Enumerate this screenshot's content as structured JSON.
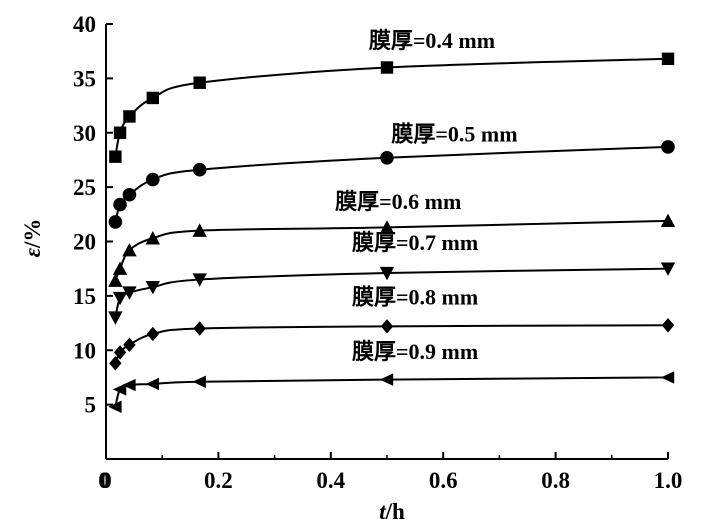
{
  "chart_data": {
    "type": "line",
    "title": "",
    "xlabel_italic": "t",
    "xlabel_rest": "/h",
    "ylabel_italic": "ε",
    "ylabel_rest": "/%",
    "xlim": [
      0,
      1.0
    ],
    "ylim": [
      0,
      40
    ],
    "xticks": [
      "0",
      "0.2",
      "0.4",
      "0.6",
      "0.8",
      "1.0"
    ],
    "yticks": [
      "5",
      "10",
      "15",
      "20",
      "25",
      "30",
      "35",
      "40"
    ],
    "xtick_values": [
      0,
      0.2,
      0.4,
      0.6,
      0.8,
      1.0
    ],
    "ytick_values": [
      5,
      10,
      15,
      20,
      25,
      30,
      35,
      40
    ],
    "grid": false,
    "series": [
      {
        "name": "膜厚=0.4 mm",
        "marker": "square",
        "x": [
          0.0167,
          0.025,
          0.0417,
          0.0833,
          0.1667,
          0.5,
          1.0
        ],
        "y": [
          27.8,
          30.0,
          31.5,
          33.2,
          34.6,
          36.0,
          36.8
        ]
      },
      {
        "name": "膜厚=0.5 mm",
        "marker": "circle",
        "x": [
          0.0167,
          0.025,
          0.0417,
          0.0833,
          0.1667,
          0.5,
          1.0
        ],
        "y": [
          21.8,
          23.4,
          24.3,
          25.7,
          26.6,
          27.7,
          28.7
        ]
      },
      {
        "name": "膜厚=0.6 mm",
        "marker": "triangle-up",
        "x": [
          0.0167,
          0.025,
          0.0417,
          0.0833,
          0.1667,
          0.5,
          1.0
        ],
        "y": [
          16.4,
          17.5,
          19.2,
          20.3,
          21.0,
          21.3,
          21.9
        ]
      },
      {
        "name": "膜厚=0.7 mm",
        "marker": "triangle-down",
        "x": [
          0.0167,
          0.025,
          0.0417,
          0.0833,
          0.1667,
          0.5,
          1.0
        ],
        "y": [
          13.0,
          14.8,
          15.3,
          15.8,
          16.5,
          17.1,
          17.5
        ]
      },
      {
        "name": "膜厚=0.8 mm",
        "marker": "diamond",
        "x": [
          0.0167,
          0.025,
          0.0417,
          0.0833,
          0.1667,
          0.5,
          1.0
        ],
        "y": [
          8.8,
          9.8,
          10.5,
          11.5,
          12.0,
          12.2,
          12.3
        ]
      },
      {
        "name": "膜厚=0.9 mm",
        "marker": "triangle-left",
        "x": [
          0.0167,
          0.025,
          0.0417,
          0.0833,
          0.1667,
          0.5,
          1.0
        ],
        "y": [
          4.8,
          6.4,
          6.8,
          6.9,
          7.1,
          7.3,
          7.5
        ]
      }
    ],
    "series_label_anchor": [
      {
        "x": 0.58,
        "y": 37.8
      },
      {
        "x": 0.62,
        "y": 29.2
      },
      {
        "x": 0.52,
        "y": 23.0
      },
      {
        "x": 0.55,
        "y": 19.2
      },
      {
        "x": 0.55,
        "y": 14.2
      },
      {
        "x": 0.55,
        "y": 9.2
      }
    ]
  }
}
